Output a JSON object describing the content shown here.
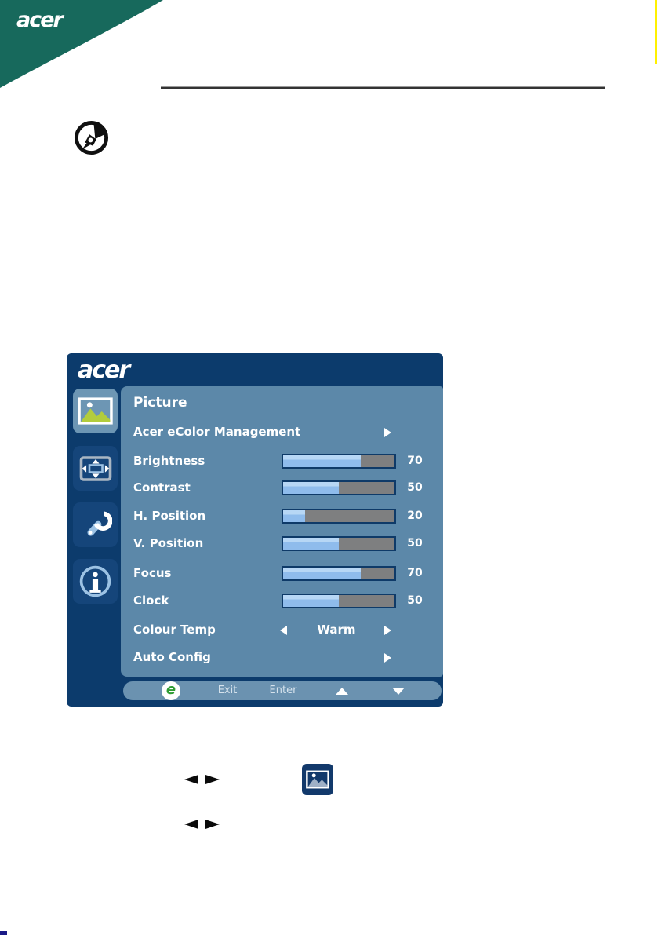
{
  "header_banner": {
    "brand_text": "acer",
    "banner_color": "#17695C"
  },
  "decorations": {
    "yellow_edge_line_color": "#FFF100",
    "horizontal_rule_color": "#333333",
    "corner_mark_color": "#1A1A86",
    "note_icon": "note-pen-icon"
  },
  "osd": {
    "brand_text": "acer",
    "title": "Picture",
    "colors": {
      "frame": "#0C3B6C",
      "panel": "#5C88A9",
      "selected_tab": "#6D96B4",
      "tab": "#15457A",
      "slider_fill": "#8FBCEC",
      "slider_rest": "#7E7F80",
      "footer_bar": "#6B92B0",
      "eco_green": "#2F9C33",
      "picture_green": "#B2CC3C"
    },
    "sidebar": [
      {
        "name": "picture-tab",
        "icon": "picture-icon",
        "selected": true
      },
      {
        "name": "osd-position-tab",
        "icon": "screen-position-icon",
        "selected": false
      },
      {
        "name": "settings-tab",
        "icon": "wrench-icon",
        "selected": false
      },
      {
        "name": "information-tab",
        "icon": "info-icon",
        "selected": false
      }
    ],
    "menu": [
      {
        "label": "Acer eColor Management",
        "type": "submenu"
      },
      {
        "label": "Brightness",
        "type": "slider",
        "value": 70
      },
      {
        "label": "Contrast",
        "type": "slider",
        "value": 50
      },
      {
        "label": "H. Position",
        "type": "slider",
        "value": 20
      },
      {
        "label": "V. Position",
        "type": "slider",
        "value": 50
      },
      {
        "label": "Focus",
        "type": "slider",
        "value": 70
      },
      {
        "label": "Clock",
        "type": "slider",
        "value": 50
      },
      {
        "label": "Colour Temp",
        "type": "choice",
        "value": "Warm"
      },
      {
        "label": "Auto Config",
        "type": "submenu"
      }
    ],
    "footer": {
      "eco_label": "e",
      "exit_label": "Exit",
      "enter_label": "Enter",
      "up_icon": "up-arrow-icon",
      "down_icon": "down-arrow-icon"
    }
  },
  "inline_icons": {
    "row1": [
      "left-arrow-icon",
      "right-arrow-icon",
      "picture-menu-button-icon"
    ],
    "row2": [
      "left-arrow-icon",
      "right-arrow-icon"
    ]
  }
}
